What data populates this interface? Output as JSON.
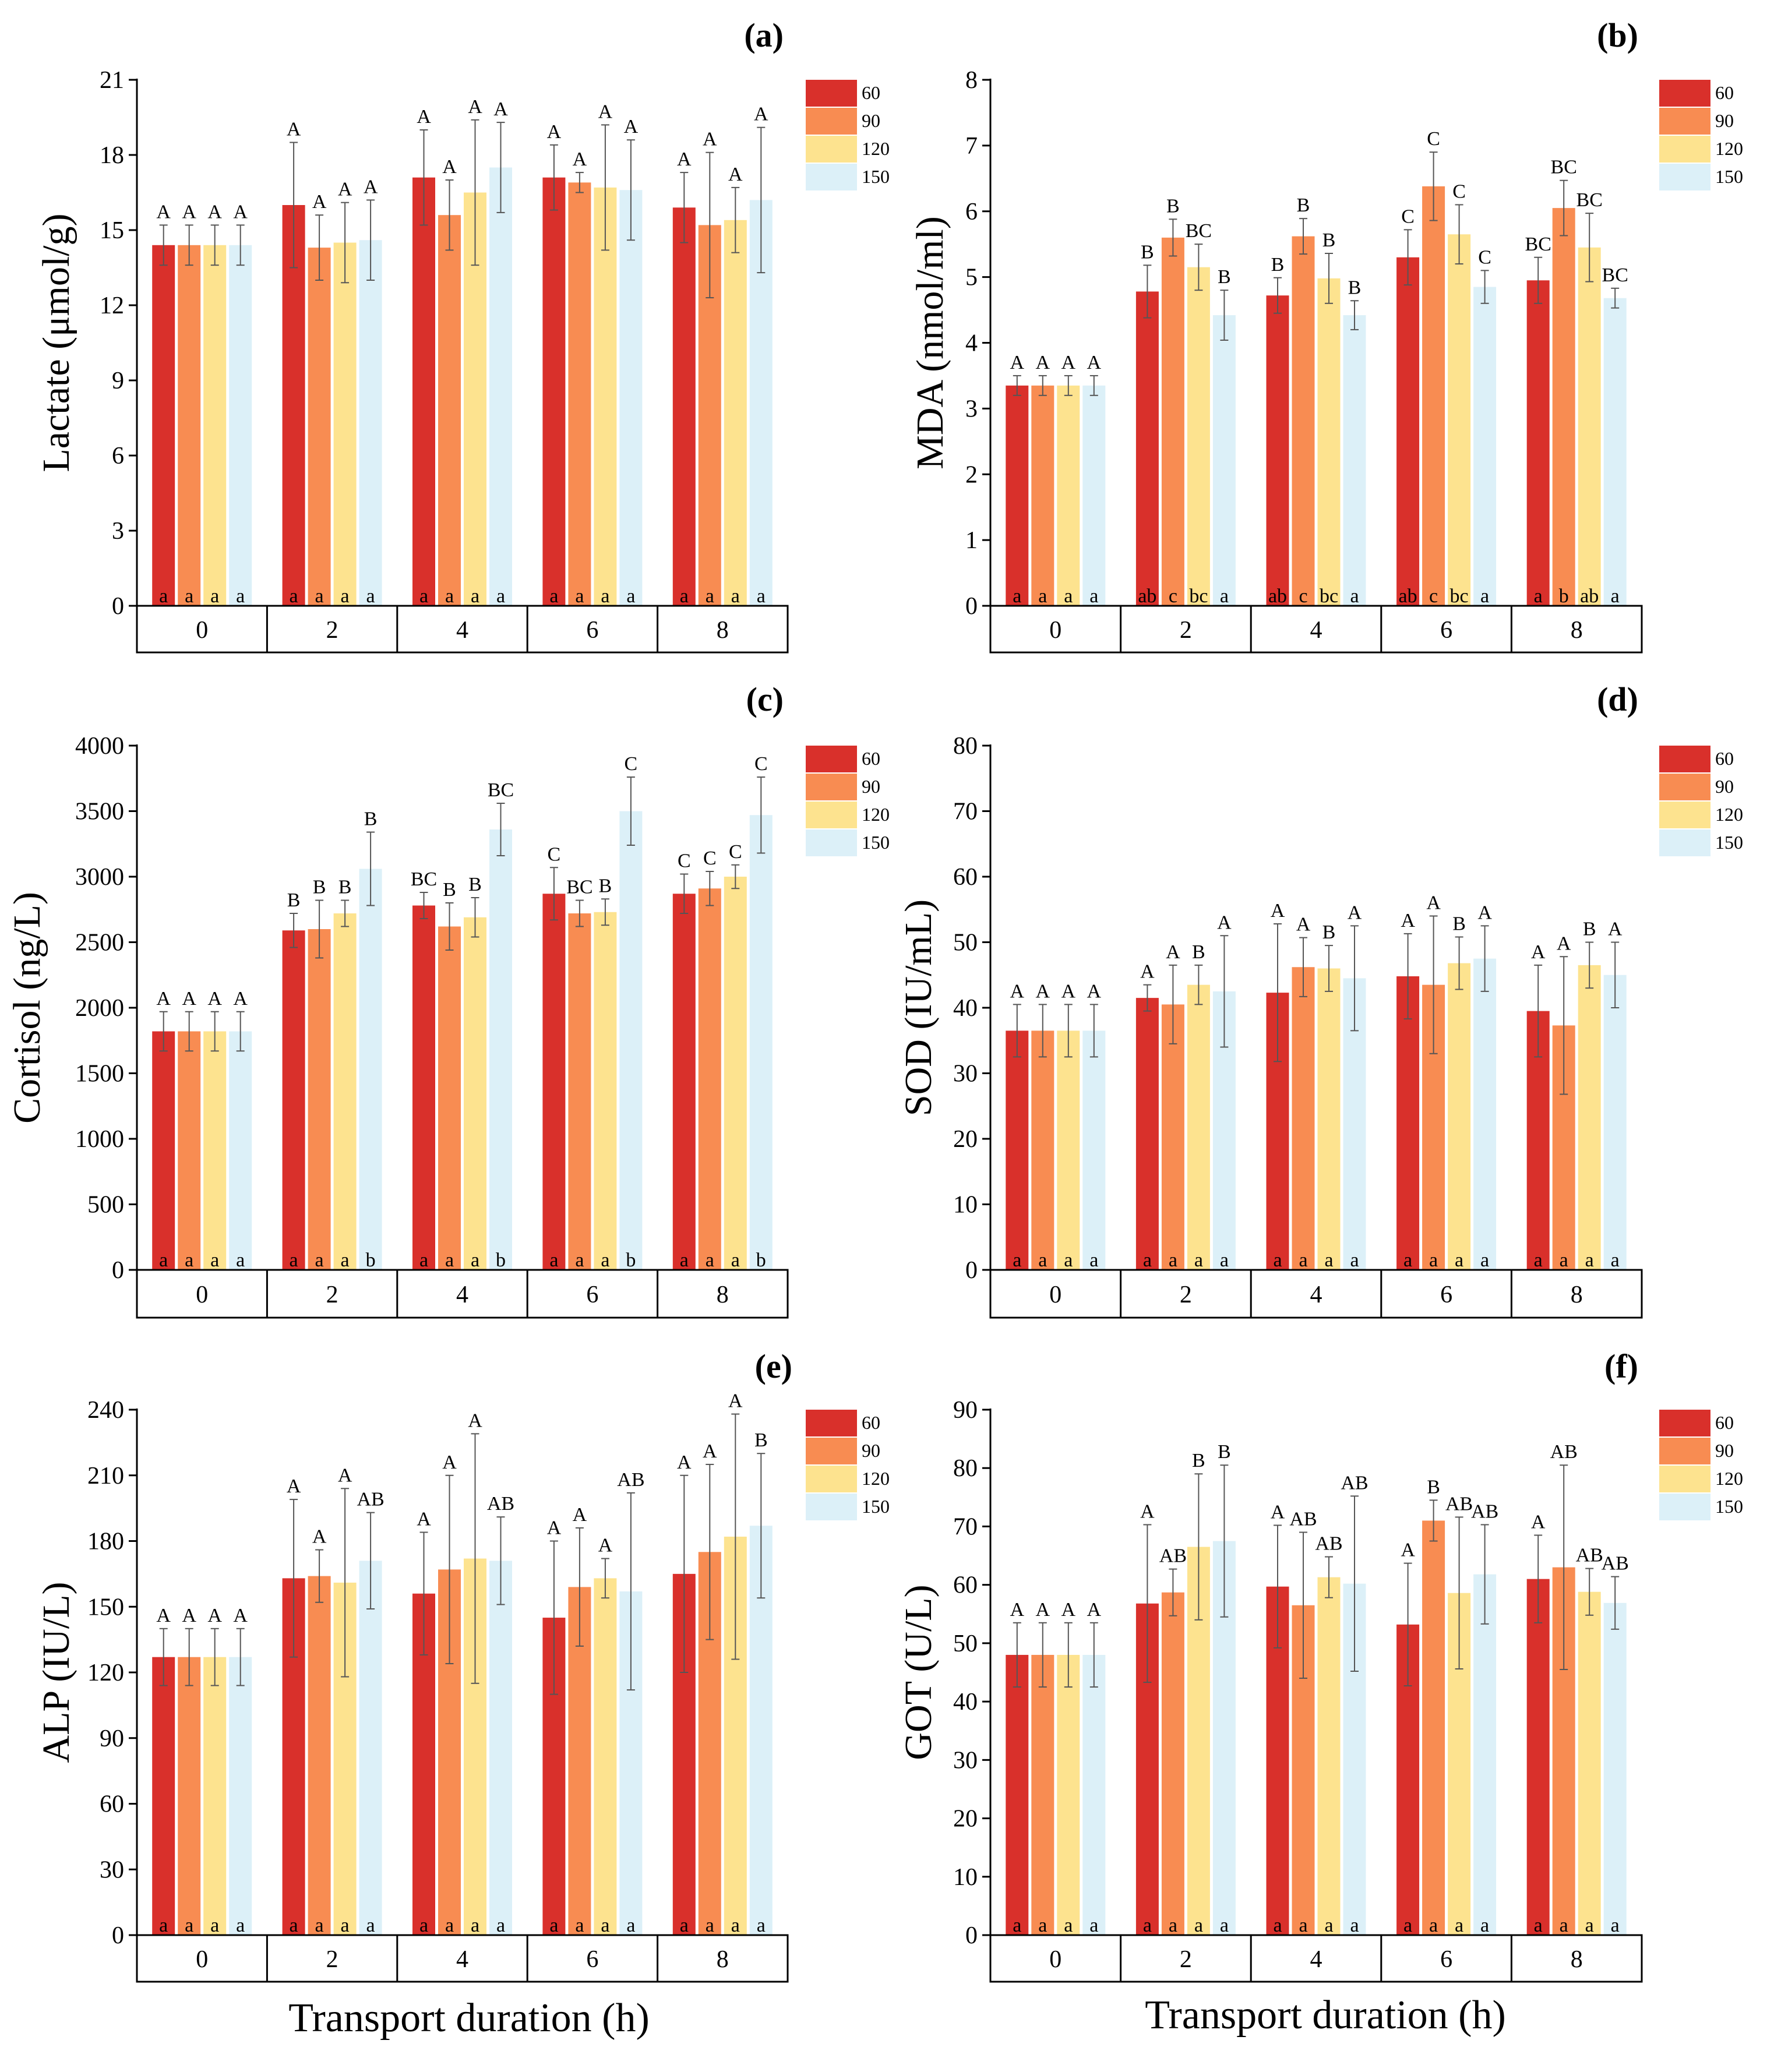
{
  "colors": {
    "s60": "#d9302b",
    "s90": "#f88c52",
    "s120": "#fde38f",
    "s150": "#dcf0f8",
    "axis": "#000000",
    "errbar": "#555555"
  },
  "legend": [
    "60",
    "90",
    "120",
    "150"
  ],
  "x_categories": [
    "0",
    "2",
    "4",
    "6",
    "8"
  ],
  "xlabel": "Transport duration (h)",
  "chart_data": [
    {
      "type": "bar",
      "panel_label": "(a)",
      "ylabel": "Lactate (μmol/g)",
      "ylim": [
        0,
        21
      ],
      "yticks": [
        0,
        3,
        6,
        9,
        12,
        15,
        18,
        21
      ],
      "ytick_labels": [
        "0",
        "3",
        "6",
        "9",
        "12",
        "15",
        "18",
        "21"
      ],
      "categories": [
        "0",
        "2",
        "4",
        "6",
        "8"
      ],
      "series": [
        {
          "name": "60",
          "values": [
            14.4,
            16.0,
            17.1,
            17.1,
            15.9
          ],
          "errors": [
            0.8,
            2.5,
            1.9,
            1.3,
            1.4
          ],
          "upper_letters": [
            "A",
            "A",
            "A",
            "A",
            "A"
          ],
          "lower_letters": [
            "a",
            "a",
            "a",
            "a",
            "a"
          ]
        },
        {
          "name": "90",
          "values": [
            14.4,
            14.3,
            15.6,
            16.9,
            15.2
          ],
          "errors": [
            0.8,
            1.3,
            1.4,
            0.4,
            2.9
          ],
          "upper_letters": [
            "A",
            "A",
            "A",
            "A",
            "A"
          ],
          "lower_letters": [
            "a",
            "a",
            "a",
            "a",
            "a"
          ]
        },
        {
          "name": "120",
          "values": [
            14.4,
            14.5,
            16.5,
            16.7,
            15.4
          ],
          "errors": [
            0.8,
            1.6,
            2.9,
            2.5,
            1.3
          ],
          "upper_letters": [
            "A",
            "A",
            "A",
            "A",
            "A"
          ],
          "lower_letters": [
            "a",
            "a",
            "a",
            "a",
            "a"
          ]
        },
        {
          "name": "150",
          "values": [
            14.4,
            14.6,
            17.5,
            16.6,
            16.2
          ],
          "errors": [
            0.8,
            1.6,
            1.8,
            2.0,
            2.9
          ],
          "upper_letters": [
            "A",
            "A",
            "A",
            "A",
            "A"
          ],
          "lower_letters": [
            "a",
            "a",
            "a",
            "a",
            "a"
          ]
        }
      ]
    },
    {
      "type": "bar",
      "panel_label": "(b)",
      "ylabel": "MDA (nmol/ml)",
      "ylim": [
        0,
        8
      ],
      "yticks": [
        0,
        1,
        2,
        3,
        4,
        5,
        6,
        7,
        8
      ],
      "ytick_labels": [
        "0",
        "1",
        "2",
        "3",
        "4",
        "5",
        "6",
        "7",
        "8"
      ],
      "categories": [
        "0",
        "2",
        "4",
        "6",
        "8"
      ],
      "series": [
        {
          "name": "60",
          "values": [
            3.35,
            4.78,
            4.72,
            5.3,
            4.95
          ],
          "errors": [
            0.15,
            0.4,
            0.27,
            0.42,
            0.35
          ],
          "upper_letters": [
            "A",
            "B",
            "B",
            "C",
            "BC"
          ],
          "lower_letters": [
            "a",
            "ab",
            "ab",
            "ab",
            "a"
          ]
        },
        {
          "name": "90",
          "values": [
            3.35,
            5.6,
            5.62,
            6.38,
            6.05
          ],
          "errors": [
            0.15,
            0.28,
            0.27,
            0.52,
            0.42
          ],
          "upper_letters": [
            "A",
            "B",
            "B",
            "C",
            "BC"
          ],
          "lower_letters": [
            "a",
            "c",
            "c",
            "c",
            "b"
          ]
        },
        {
          "name": "120",
          "values": [
            3.35,
            5.15,
            4.98,
            5.65,
            5.45
          ],
          "errors": [
            0.15,
            0.35,
            0.38,
            0.45,
            0.52
          ],
          "upper_letters": [
            "A",
            "BC",
            "B",
            "C",
            "BC"
          ],
          "lower_letters": [
            "a",
            "bc",
            "bc",
            "bc",
            "ab"
          ]
        },
        {
          "name": "150",
          "values": [
            3.35,
            4.42,
            4.42,
            4.85,
            4.68
          ],
          "errors": [
            0.15,
            0.38,
            0.22,
            0.25,
            0.15
          ],
          "upper_letters": [
            "A",
            "B",
            "B",
            "C",
            "BC"
          ],
          "lower_letters": [
            "a",
            "a",
            "a",
            "a",
            "a"
          ]
        }
      ]
    },
    {
      "type": "bar",
      "panel_label": "(c)",
      "ylabel": "Cortisol (ng/L)",
      "ylim": [
        0,
        4000
      ],
      "yticks": [
        0,
        500,
        1000,
        1500,
        2000,
        2500,
        3000,
        3500,
        4000
      ],
      "ytick_labels": [
        "0",
        "500",
        "1000",
        "1500",
        "2000",
        "2500",
        "3000",
        "3500",
        "4000"
      ],
      "categories": [
        "0",
        "2",
        "4",
        "6",
        "8"
      ],
      "series": [
        {
          "name": "60",
          "values": [
            1820,
            2590,
            2780,
            2870,
            2870
          ],
          "errors": [
            150,
            130,
            100,
            200,
            150
          ],
          "upper_letters": [
            "A",
            "B",
            "BC",
            "C",
            "C"
          ],
          "lower_letters": [
            "a",
            "a",
            "a",
            "a",
            "a"
          ]
        },
        {
          "name": "90",
          "values": [
            1820,
            2600,
            2620,
            2720,
            2910
          ],
          "errors": [
            150,
            220,
            180,
            100,
            130
          ],
          "upper_letters": [
            "A",
            "B",
            "B",
            "BC",
            "C"
          ],
          "lower_letters": [
            "a",
            "a",
            "a",
            "a",
            "a"
          ]
        },
        {
          "name": "120",
          "values": [
            1820,
            2720,
            2690,
            2730,
            3000
          ],
          "errors": [
            150,
            100,
            150,
            100,
            90
          ],
          "upper_letters": [
            "A",
            "B",
            "B",
            "B",
            "C"
          ],
          "lower_letters": [
            "a",
            "a",
            "a",
            "a",
            "a"
          ]
        },
        {
          "name": "150",
          "values": [
            1820,
            3060,
            3360,
            3500,
            3470
          ],
          "errors": [
            150,
            280,
            200,
            260,
            290
          ],
          "upper_letters": [
            "A",
            "B",
            "BC",
            "C",
            "C"
          ],
          "lower_letters": [
            "a",
            "b",
            "b",
            "b",
            "b"
          ]
        }
      ]
    },
    {
      "type": "bar",
      "panel_label": "(d)",
      "ylabel": "SOD (IU/mL)",
      "ylim": [
        0,
        80
      ],
      "yticks": [
        0,
        10,
        20,
        30,
        40,
        50,
        60,
        70,
        80
      ],
      "ytick_labels": [
        "0",
        "10",
        "20",
        "30",
        "40",
        "50",
        "60",
        "70",
        "80"
      ],
      "categories": [
        "0",
        "2",
        "4",
        "6",
        "8"
      ],
      "series": [
        {
          "name": "60",
          "values": [
            36.5,
            41.5,
            42.3,
            44.8,
            39.5
          ],
          "errors": [
            4.0,
            2.0,
            10.5,
            6.5,
            7.0
          ],
          "upper_letters": [
            "A",
            "A",
            "A",
            "A",
            "A"
          ],
          "lower_letters": [
            "a",
            "a",
            "a",
            "a",
            "a"
          ]
        },
        {
          "name": "90",
          "values": [
            36.5,
            40.5,
            46.2,
            43.5,
            37.3
          ],
          "errors": [
            4.0,
            6.0,
            4.5,
            10.5,
            10.5
          ],
          "upper_letters": [
            "A",
            "A",
            "A",
            "A",
            "A"
          ],
          "lower_letters": [
            "a",
            "a",
            "a",
            "a",
            "a"
          ]
        },
        {
          "name": "120",
          "values": [
            36.5,
            43.5,
            46.0,
            46.8,
            46.5
          ],
          "errors": [
            4.0,
            3.0,
            3.5,
            4.0,
            3.5
          ],
          "upper_letters": [
            "A",
            "B",
            "B",
            "B",
            "B"
          ],
          "lower_letters": [
            "a",
            "a",
            "a",
            "a",
            "a"
          ]
        },
        {
          "name": "150",
          "values": [
            36.5,
            42.5,
            44.5,
            47.5,
            45.0
          ],
          "errors": [
            4.0,
            8.5,
            8.0,
            5.0,
            5.0
          ],
          "upper_letters": [
            "A",
            "A",
            "A",
            "A",
            "A"
          ],
          "lower_letters": [
            "a",
            "a",
            "a",
            "a",
            "a"
          ]
        }
      ]
    },
    {
      "type": "bar",
      "panel_label": "(e)",
      "ylabel": "ALP (IU/L)",
      "ylim": [
        0,
        240
      ],
      "yticks": [
        0,
        30,
        60,
        90,
        120,
        150,
        180,
        210,
        240
      ],
      "ytick_labels": [
        "0",
        "30",
        "60",
        "90",
        "120",
        "150",
        "180",
        "210",
        "240"
      ],
      "categories": [
        "0",
        "2",
        "4",
        "6",
        "8"
      ],
      "series": [
        {
          "name": "60",
          "values": [
            127,
            163,
            156,
            145,
            165
          ],
          "errors": [
            13,
            36,
            28,
            35,
            45
          ],
          "upper_letters": [
            "A",
            "A",
            "A",
            "A",
            "A"
          ],
          "lower_letters": [
            "a",
            "a",
            "a",
            "a",
            "a"
          ]
        },
        {
          "name": "90",
          "values": [
            127,
            164,
            167,
            159,
            175
          ],
          "errors": [
            13,
            12,
            43,
            27,
            40
          ],
          "upper_letters": [
            "A",
            "A",
            "A",
            "A",
            "A"
          ],
          "lower_letters": [
            "a",
            "a",
            "a",
            "a",
            "a"
          ]
        },
        {
          "name": "120",
          "values": [
            127,
            161,
            172,
            163,
            182
          ],
          "errors": [
            13,
            43,
            57,
            9,
            56
          ],
          "upper_letters": [
            "A",
            "A",
            "A",
            "A",
            "A"
          ],
          "lower_letters": [
            "a",
            "a",
            "a",
            "a",
            "a"
          ]
        },
        {
          "name": "150",
          "values": [
            127,
            171,
            171,
            157,
            187
          ],
          "errors": [
            13,
            22,
            20,
            45,
            33
          ],
          "upper_letters": [
            "A",
            "AB",
            "AB",
            "AB",
            "B"
          ],
          "lower_letters": [
            "a",
            "a",
            "a",
            "a",
            "a"
          ]
        }
      ]
    },
    {
      "type": "bar",
      "panel_label": "(f)",
      "ylabel": "GOT (U/L)",
      "ylim": [
        0,
        90
      ],
      "yticks": [
        0,
        10,
        20,
        30,
        40,
        50,
        60,
        70,
        80,
        90
      ],
      "ytick_labels": [
        "0",
        "10",
        "20",
        "30",
        "40",
        "50",
        "60",
        "70",
        "80",
        "90"
      ],
      "categories": [
        "0",
        "2",
        "4",
        "6",
        "8"
      ],
      "series": [
        {
          "name": "60",
          "values": [
            48,
            56.8,
            59.7,
            53.2,
            61.0
          ],
          "errors": [
            5.5,
            13.5,
            10.5,
            10.5,
            7.5
          ],
          "upper_letters": [
            "A",
            "A",
            "A",
            "A",
            "A"
          ],
          "lower_letters": [
            "a",
            "a",
            "a",
            "a",
            "a"
          ]
        },
        {
          "name": "90",
          "values": [
            48,
            58.7,
            56.5,
            71.0,
            63.0
          ],
          "errors": [
            5.5,
            4.0,
            12.5,
            3.5,
            17.5
          ],
          "upper_letters": [
            "A",
            "AB",
            "AB",
            "B",
            "AB"
          ],
          "lower_letters": [
            "a",
            "a",
            "a",
            "a",
            "a"
          ]
        },
        {
          "name": "120",
          "values": [
            48,
            66.5,
            61.3,
            58.6,
            58.8
          ],
          "errors": [
            5.5,
            12.5,
            3.5,
            13.0,
            4.0
          ],
          "upper_letters": [
            "A",
            "B",
            "AB",
            "AB",
            "AB"
          ],
          "lower_letters": [
            "a",
            "a",
            "a",
            "a",
            "a"
          ]
        },
        {
          "name": "150",
          "values": [
            48,
            67.5,
            60.2,
            61.8,
            56.9
          ],
          "errors": [
            5.5,
            13.0,
            15.0,
            8.5,
            4.5
          ],
          "upper_letters": [
            "A",
            "B",
            "AB",
            "AB",
            "AB"
          ],
          "lower_letters": [
            "a",
            "a",
            "a",
            "a",
            "a"
          ]
        }
      ]
    }
  ]
}
